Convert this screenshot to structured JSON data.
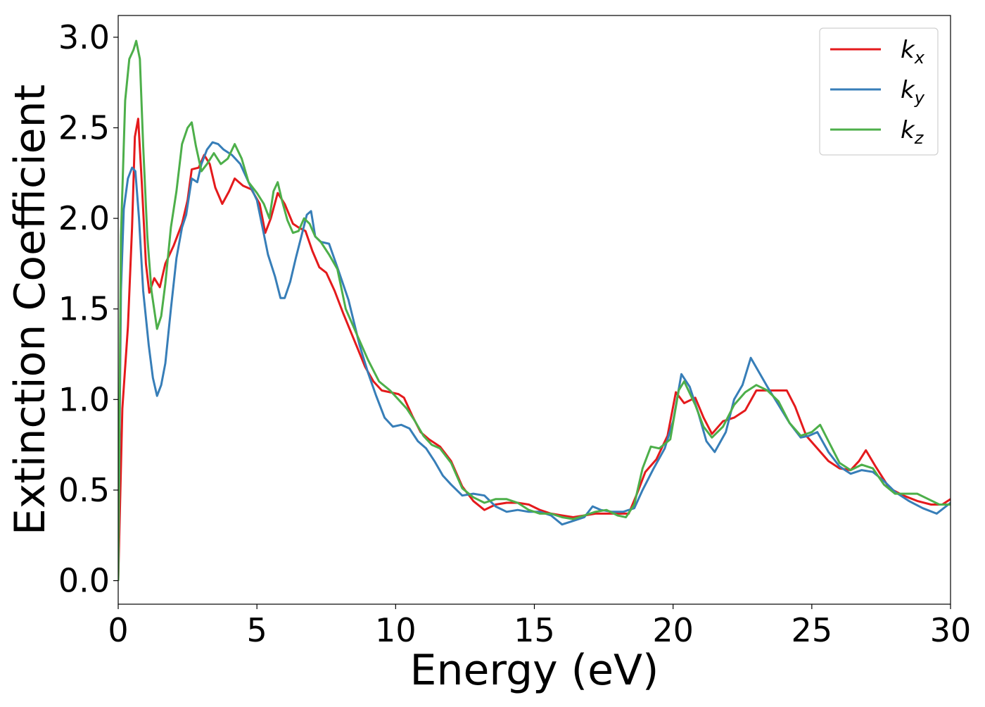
{
  "chart_data": {
    "type": "line",
    "title": "",
    "xlabel": "Energy (eV)",
    "ylabel": "Extinction Coefficient",
    "xlim": [
      0,
      30
    ],
    "ylim": [
      -0.13,
      3.12
    ],
    "xticks": [
      0,
      5,
      10,
      15,
      20,
      25,
      30
    ],
    "xtick_labels": [
      "0",
      "5",
      "10",
      "15",
      "20",
      "25",
      "30"
    ],
    "yticks": [
      0.0,
      0.5,
      1.0,
      1.5,
      2.0,
      2.5,
      3.0
    ],
    "ytick_labels": [
      "0.0",
      "0.5",
      "1.0",
      "1.5",
      "2.0",
      "2.5",
      "3.0"
    ],
    "grid": false,
    "legend_position": "top-right",
    "series": [
      {
        "name": "k",
        "subscript": "x",
        "color": "#e41a1c",
        "points": [
          [
            0,
            0
          ],
          [
            0.15,
            0.95
          ],
          [
            0.35,
            1.4
          ],
          [
            0.5,
            1.95
          ],
          [
            0.6,
            2.45
          ],
          [
            0.72,
            2.55
          ],
          [
            0.85,
            2.2
          ],
          [
            1.0,
            1.75
          ],
          [
            1.12,
            1.59
          ],
          [
            1.3,
            1.67
          ],
          [
            1.5,
            1.62
          ],
          [
            1.7,
            1.75
          ],
          [
            2.0,
            1.85
          ],
          [
            2.3,
            1.97
          ],
          [
            2.5,
            2.1
          ],
          [
            2.65,
            2.27
          ],
          [
            2.9,
            2.28
          ],
          [
            3.1,
            2.35
          ],
          [
            3.3,
            2.3
          ],
          [
            3.5,
            2.17
          ],
          [
            3.75,
            2.08
          ],
          [
            4.0,
            2.15
          ],
          [
            4.2,
            2.22
          ],
          [
            4.5,
            2.18
          ],
          [
            4.8,
            2.16
          ],
          [
            5.1,
            2.08
          ],
          [
            5.3,
            1.92
          ],
          [
            5.5,
            2.0
          ],
          [
            5.75,
            2.14
          ],
          [
            6.0,
            2.08
          ],
          [
            6.3,
            1.97
          ],
          [
            6.5,
            1.95
          ],
          [
            6.75,
            1.93
          ],
          [
            7.0,
            1.82
          ],
          [
            7.25,
            1.73
          ],
          [
            7.5,
            1.7
          ],
          [
            7.8,
            1.6
          ],
          [
            8.1,
            1.48
          ],
          [
            8.5,
            1.33
          ],
          [
            8.9,
            1.18
          ],
          [
            9.2,
            1.1
          ],
          [
            9.5,
            1.05
          ],
          [
            9.8,
            1.04
          ],
          [
            10.1,
            1.03
          ],
          [
            10.3,
            1.01
          ],
          [
            10.6,
            0.91
          ],
          [
            10.9,
            0.82
          ],
          [
            11.2,
            0.78
          ],
          [
            11.6,
            0.74
          ],
          [
            12.0,
            0.66
          ],
          [
            12.4,
            0.52
          ],
          [
            12.8,
            0.44
          ],
          [
            13.2,
            0.39
          ],
          [
            13.6,
            0.42
          ],
          [
            14.0,
            0.43
          ],
          [
            14.4,
            0.43
          ],
          [
            14.8,
            0.42
          ],
          [
            15.2,
            0.39
          ],
          [
            15.6,
            0.37
          ],
          [
            16.0,
            0.36
          ],
          [
            16.4,
            0.35
          ],
          [
            16.8,
            0.36
          ],
          [
            17.2,
            0.37
          ],
          [
            17.6,
            0.37
          ],
          [
            18.0,
            0.37
          ],
          [
            18.4,
            0.37
          ],
          [
            18.7,
            0.48
          ],
          [
            19.0,
            0.6
          ],
          [
            19.4,
            0.67
          ],
          [
            19.8,
            0.8
          ],
          [
            20.1,
            1.04
          ],
          [
            20.4,
            0.98
          ],
          [
            20.8,
            1.01
          ],
          [
            21.1,
            0.9
          ],
          [
            21.4,
            0.81
          ],
          [
            21.8,
            0.88
          ],
          [
            22.2,
            0.9
          ],
          [
            22.6,
            0.94
          ],
          [
            23.0,
            1.05
          ],
          [
            23.3,
            1.05
          ],
          [
            23.7,
            1.05
          ],
          [
            24.1,
            1.05
          ],
          [
            24.4,
            0.96
          ],
          [
            24.8,
            0.8
          ],
          [
            25.2,
            0.73
          ],
          [
            25.6,
            0.66
          ],
          [
            26.0,
            0.62
          ],
          [
            26.4,
            0.61
          ],
          [
            26.7,
            0.66
          ],
          [
            26.95,
            0.72
          ],
          [
            27.3,
            0.63
          ],
          [
            27.8,
            0.51
          ],
          [
            28.3,
            0.47
          ],
          [
            28.8,
            0.44
          ],
          [
            29.3,
            0.42
          ],
          [
            29.7,
            0.42
          ],
          [
            30.0,
            0.45
          ]
        ]
      },
      {
        "name": "k",
        "subscript": "y",
        "color": "#377eb8",
        "points": [
          [
            0,
            0
          ],
          [
            0.1,
            1.6
          ],
          [
            0.2,
            2.05
          ],
          [
            0.35,
            2.22
          ],
          [
            0.5,
            2.28
          ],
          [
            0.62,
            2.26
          ],
          [
            0.75,
            2.0
          ],
          [
            0.9,
            1.6
          ],
          [
            1.1,
            1.3
          ],
          [
            1.25,
            1.12
          ],
          [
            1.4,
            1.02
          ],
          [
            1.55,
            1.08
          ],
          [
            1.7,
            1.2
          ],
          [
            1.9,
            1.5
          ],
          [
            2.1,
            1.78
          ],
          [
            2.3,
            1.95
          ],
          [
            2.45,
            2.02
          ],
          [
            2.65,
            2.22
          ],
          [
            2.85,
            2.2
          ],
          [
            3.0,
            2.3
          ],
          [
            3.2,
            2.38
          ],
          [
            3.4,
            2.42
          ],
          [
            3.6,
            2.41
          ],
          [
            3.8,
            2.38
          ],
          [
            4.1,
            2.35
          ],
          [
            4.4,
            2.3
          ],
          [
            4.7,
            2.2
          ],
          [
            5.0,
            2.1
          ],
          [
            5.2,
            1.95
          ],
          [
            5.4,
            1.8
          ],
          [
            5.65,
            1.68
          ],
          [
            5.85,
            1.56
          ],
          [
            6.0,
            1.56
          ],
          [
            6.2,
            1.65
          ],
          [
            6.4,
            1.78
          ],
          [
            6.6,
            1.9
          ],
          [
            6.8,
            2.02
          ],
          [
            6.95,
            2.04
          ],
          [
            7.1,
            1.9
          ],
          [
            7.3,
            1.87
          ],
          [
            7.6,
            1.86
          ],
          [
            7.9,
            1.73
          ],
          [
            8.3,
            1.55
          ],
          [
            8.7,
            1.3
          ],
          [
            9.0,
            1.15
          ],
          [
            9.3,
            1.02
          ],
          [
            9.6,
            0.9
          ],
          [
            9.9,
            0.85
          ],
          [
            10.2,
            0.86
          ],
          [
            10.5,
            0.84
          ],
          [
            10.8,
            0.77
          ],
          [
            11.1,
            0.73
          ],
          [
            11.4,
            0.66
          ],
          [
            11.7,
            0.58
          ],
          [
            12.0,
            0.53
          ],
          [
            12.4,
            0.47
          ],
          [
            12.8,
            0.48
          ],
          [
            13.2,
            0.47
          ],
          [
            13.6,
            0.41
          ],
          [
            14.0,
            0.38
          ],
          [
            14.4,
            0.39
          ],
          [
            14.8,
            0.38
          ],
          [
            15.2,
            0.38
          ],
          [
            15.6,
            0.36
          ],
          [
            16.0,
            0.31
          ],
          [
            16.4,
            0.33
          ],
          [
            16.8,
            0.35
          ],
          [
            17.1,
            0.41
          ],
          [
            17.4,
            0.39
          ],
          [
            17.8,
            0.38
          ],
          [
            18.2,
            0.38
          ],
          [
            18.6,
            0.4
          ],
          [
            18.9,
            0.5
          ],
          [
            19.3,
            0.62
          ],
          [
            19.7,
            0.73
          ],
          [
            20.0,
            0.88
          ],
          [
            20.3,
            1.14
          ],
          [
            20.6,
            1.07
          ],
          [
            20.9,
            0.93
          ],
          [
            21.2,
            0.77
          ],
          [
            21.5,
            0.71
          ],
          [
            21.9,
            0.82
          ],
          [
            22.2,
            1.0
          ],
          [
            22.5,
            1.08
          ],
          [
            22.8,
            1.23
          ],
          [
            23.1,
            1.15
          ],
          [
            23.4,
            1.07
          ],
          [
            23.8,
            0.97
          ],
          [
            24.2,
            0.87
          ],
          [
            24.6,
            0.79
          ],
          [
            24.9,
            0.8
          ],
          [
            25.2,
            0.82
          ],
          [
            25.6,
            0.71
          ],
          [
            26.0,
            0.63
          ],
          [
            26.4,
            0.59
          ],
          [
            26.8,
            0.61
          ],
          [
            27.2,
            0.6
          ],
          [
            27.6,
            0.55
          ],
          [
            28.0,
            0.49
          ],
          [
            28.5,
            0.44
          ],
          [
            29.0,
            0.4
          ],
          [
            29.5,
            0.37
          ],
          [
            30.0,
            0.43
          ]
        ]
      },
      {
        "name": "k",
        "subscript": "z",
        "color": "#4daf4a",
        "points": [
          [
            0,
            0
          ],
          [
            0.1,
            1.9
          ],
          [
            0.25,
            2.65
          ],
          [
            0.4,
            2.88
          ],
          [
            0.55,
            2.93
          ],
          [
            0.65,
            2.98
          ],
          [
            0.78,
            2.88
          ],
          [
            0.9,
            2.4
          ],
          [
            1.05,
            1.9
          ],
          [
            1.2,
            1.6
          ],
          [
            1.4,
            1.39
          ],
          [
            1.55,
            1.46
          ],
          [
            1.7,
            1.64
          ],
          [
            1.9,
            1.95
          ],
          [
            2.1,
            2.15
          ],
          [
            2.3,
            2.41
          ],
          [
            2.5,
            2.5
          ],
          [
            2.65,
            2.53
          ],
          [
            2.8,
            2.4
          ],
          [
            3.0,
            2.26
          ],
          [
            3.2,
            2.3
          ],
          [
            3.45,
            2.36
          ],
          [
            3.7,
            2.3
          ],
          [
            3.95,
            2.33
          ],
          [
            4.2,
            2.41
          ],
          [
            4.45,
            2.33
          ],
          [
            4.7,
            2.2
          ],
          [
            5.0,
            2.14
          ],
          [
            5.25,
            2.08
          ],
          [
            5.45,
            2.0
          ],
          [
            5.6,
            2.15
          ],
          [
            5.75,
            2.2
          ],
          [
            5.9,
            2.1
          ],
          [
            6.1,
            1.99
          ],
          [
            6.3,
            1.92
          ],
          [
            6.5,
            1.93
          ],
          [
            6.7,
            2.0
          ],
          [
            6.9,
            1.97
          ],
          [
            7.1,
            1.9
          ],
          [
            7.3,
            1.87
          ],
          [
            7.6,
            1.8
          ],
          [
            7.9,
            1.72
          ],
          [
            8.2,
            1.5
          ],
          [
            8.6,
            1.36
          ],
          [
            9.0,
            1.22
          ],
          [
            9.4,
            1.1
          ],
          [
            9.8,
            1.05
          ],
          [
            10.1,
            1.0
          ],
          [
            10.4,
            0.95
          ],
          [
            10.7,
            0.88
          ],
          [
            11.0,
            0.8
          ],
          [
            11.3,
            0.75
          ],
          [
            11.6,
            0.73
          ],
          [
            12.0,
            0.65
          ],
          [
            12.4,
            0.51
          ],
          [
            12.8,
            0.46
          ],
          [
            13.2,
            0.43
          ],
          [
            13.6,
            0.45
          ],
          [
            14.0,
            0.45
          ],
          [
            14.4,
            0.43
          ],
          [
            14.8,
            0.39
          ],
          [
            15.2,
            0.37
          ],
          [
            15.6,
            0.37
          ],
          [
            16.0,
            0.35
          ],
          [
            16.4,
            0.34
          ],
          [
            16.8,
            0.36
          ],
          [
            17.2,
            0.38
          ],
          [
            17.6,
            0.39
          ],
          [
            18.0,
            0.36
          ],
          [
            18.3,
            0.35
          ],
          [
            18.6,
            0.42
          ],
          [
            18.9,
            0.62
          ],
          [
            19.2,
            0.74
          ],
          [
            19.5,
            0.73
          ],
          [
            19.9,
            0.78
          ],
          [
            20.2,
            1.05
          ],
          [
            20.4,
            1.1
          ],
          [
            20.8,
            0.97
          ],
          [
            21.1,
            0.85
          ],
          [
            21.4,
            0.79
          ],
          [
            21.8,
            0.85
          ],
          [
            22.2,
            0.97
          ],
          [
            22.6,
            1.04
          ],
          [
            23.0,
            1.08
          ],
          [
            23.4,
            1.05
          ],
          [
            23.8,
            0.99
          ],
          [
            24.2,
            0.87
          ],
          [
            24.6,
            0.8
          ],
          [
            25.0,
            0.82
          ],
          [
            25.3,
            0.86
          ],
          [
            25.6,
            0.77
          ],
          [
            26.0,
            0.65
          ],
          [
            26.4,
            0.61
          ],
          [
            26.8,
            0.64
          ],
          [
            27.2,
            0.62
          ],
          [
            27.6,
            0.53
          ],
          [
            28.0,
            0.48
          ],
          [
            28.4,
            0.48
          ],
          [
            28.8,
            0.48
          ],
          [
            29.2,
            0.45
          ],
          [
            29.6,
            0.42
          ],
          [
            30.0,
            0.42
          ]
        ]
      }
    ]
  }
}
